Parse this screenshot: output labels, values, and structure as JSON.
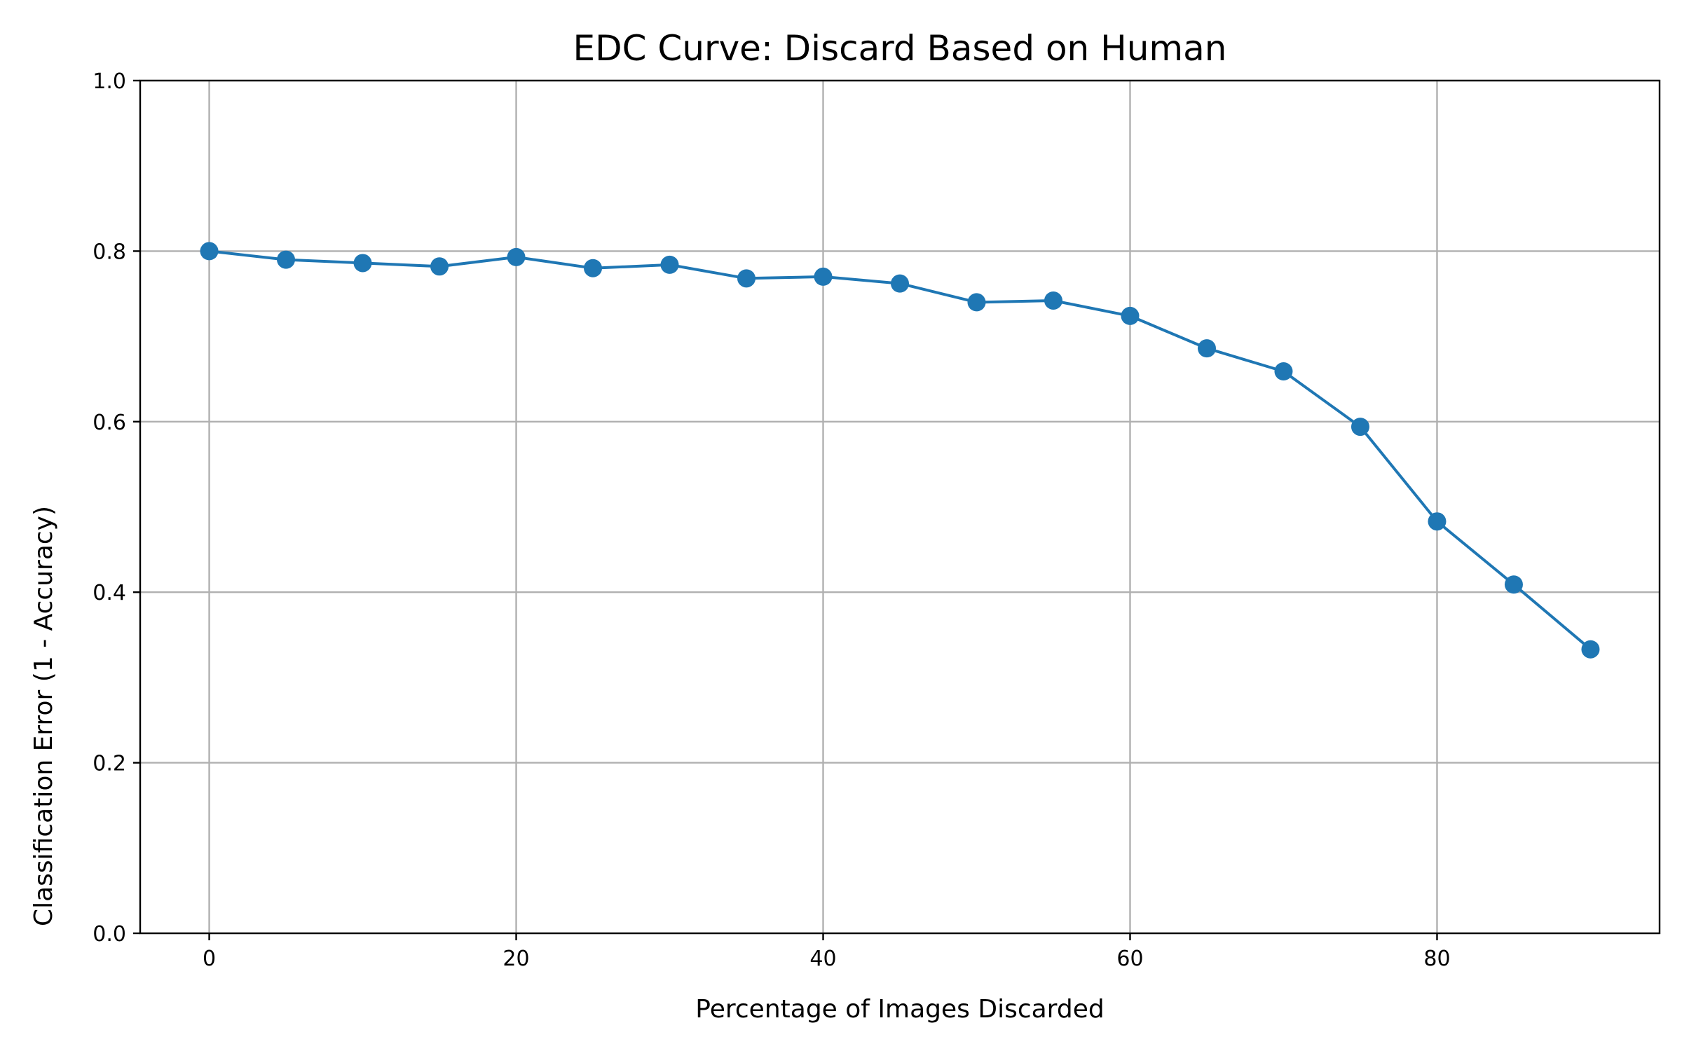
{
  "chart_data": {
    "type": "line",
    "title": "EDC Curve: Discard Based on Human",
    "xlabel": "Percentage of Images Discarded",
    "ylabel": "Classification Error (1 - Accuracy)",
    "xlim": [
      -4.5,
      94.5
    ],
    "ylim": [
      0.0,
      1.0
    ],
    "x_ticks": [
      0,
      20,
      40,
      60,
      80
    ],
    "x_tick_labels": [
      "0",
      "20",
      "40",
      "60",
      "80"
    ],
    "y_ticks": [
      0.0,
      0.2,
      0.4,
      0.6,
      0.8,
      1.0
    ],
    "y_tick_labels": [
      "0.0",
      "0.2",
      "0.4",
      "0.6",
      "0.8",
      "1.0"
    ],
    "grid": true,
    "legend": "none",
    "series": [
      {
        "color": "#1f77b4",
        "marker": "circle",
        "x": [
          0,
          5,
          10,
          15,
          20,
          25,
          30,
          35,
          40,
          45,
          50,
          55,
          60,
          65,
          70,
          75,
          80,
          85,
          90
        ],
        "y": [
          0.8,
          0.79,
          0.786,
          0.782,
          0.793,
          0.78,
          0.784,
          0.768,
          0.77,
          0.762,
          0.74,
          0.742,
          0.724,
          0.686,
          0.659,
          0.594,
          0.483,
          0.409,
          0.333
        ]
      }
    ]
  }
}
